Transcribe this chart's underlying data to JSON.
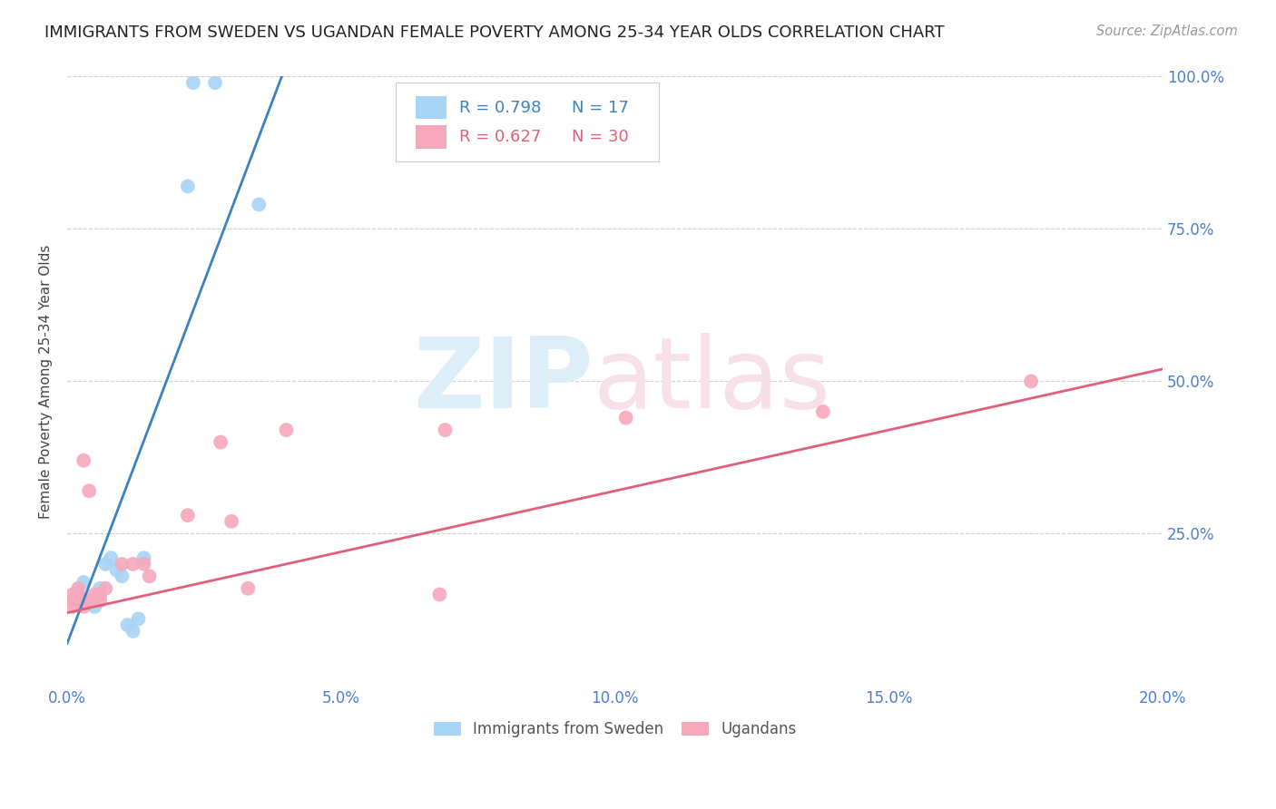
{
  "title": "IMMIGRANTS FROM SWEDEN VS UGANDAN FEMALE POVERTY AMONG 25-34 YEAR OLDS CORRELATION CHART",
  "source": "Source: ZipAtlas.com",
  "ylabel": "Female Poverty Among 25-34 Year Olds",
  "xlim": [
    0.0,
    0.2
  ],
  "ylim": [
    0.0,
    1.0
  ],
  "legend_blue_r": "R = 0.798",
  "legend_blue_n": "N = 17",
  "legend_pink_r": "R = 0.627",
  "legend_pink_n": "N = 30",
  "blue_color": "#a8d4f5",
  "pink_color": "#f5a8bc",
  "blue_line_color": "#3b82c4",
  "pink_line_color": "#e0607a",
  "tick_color": "#4a7fd4",
  "grid_color": "#d0d0d0",
  "blue_scatter_x": [
    0.002,
    0.003,
    0.004,
    0.005,
    0.006,
    0.007,
    0.008,
    0.009,
    0.01,
    0.011,
    0.012,
    0.013,
    0.014,
    0.022,
    0.023,
    0.027,
    0.035
  ],
  "blue_scatter_y": [
    0.15,
    0.17,
    0.14,
    0.13,
    0.16,
    0.2,
    0.21,
    0.19,
    0.18,
    0.1,
    0.09,
    0.11,
    0.21,
    0.82,
    0.99,
    0.99,
    0.79
  ],
  "pink_scatter_x": [
    0.001,
    0.001,
    0.001,
    0.002,
    0.002,
    0.002,
    0.003,
    0.003,
    0.003,
    0.004,
    0.004,
    0.005,
    0.005,
    0.006,
    0.006,
    0.007,
    0.01,
    0.012,
    0.014,
    0.015,
    0.022,
    0.028,
    0.03,
    0.033,
    0.04,
    0.068,
    0.069,
    0.102,
    0.138,
    0.176
  ],
  "pink_scatter_y": [
    0.14,
    0.15,
    0.13,
    0.14,
    0.15,
    0.16,
    0.13,
    0.14,
    0.37,
    0.14,
    0.32,
    0.14,
    0.15,
    0.14,
    0.15,
    0.16,
    0.2,
    0.2,
    0.2,
    0.18,
    0.28,
    0.4,
    0.27,
    0.16,
    0.42,
    0.15,
    0.42,
    0.44,
    0.45,
    0.5
  ],
  "blue_line_x": [
    0.0,
    0.04
  ],
  "blue_line_y": [
    0.07,
    1.02
  ],
  "pink_line_x": [
    0.0,
    0.2
  ],
  "pink_line_y": [
    0.12,
    0.52
  ],
  "title_fontsize": 13,
  "source_fontsize": 10.5
}
